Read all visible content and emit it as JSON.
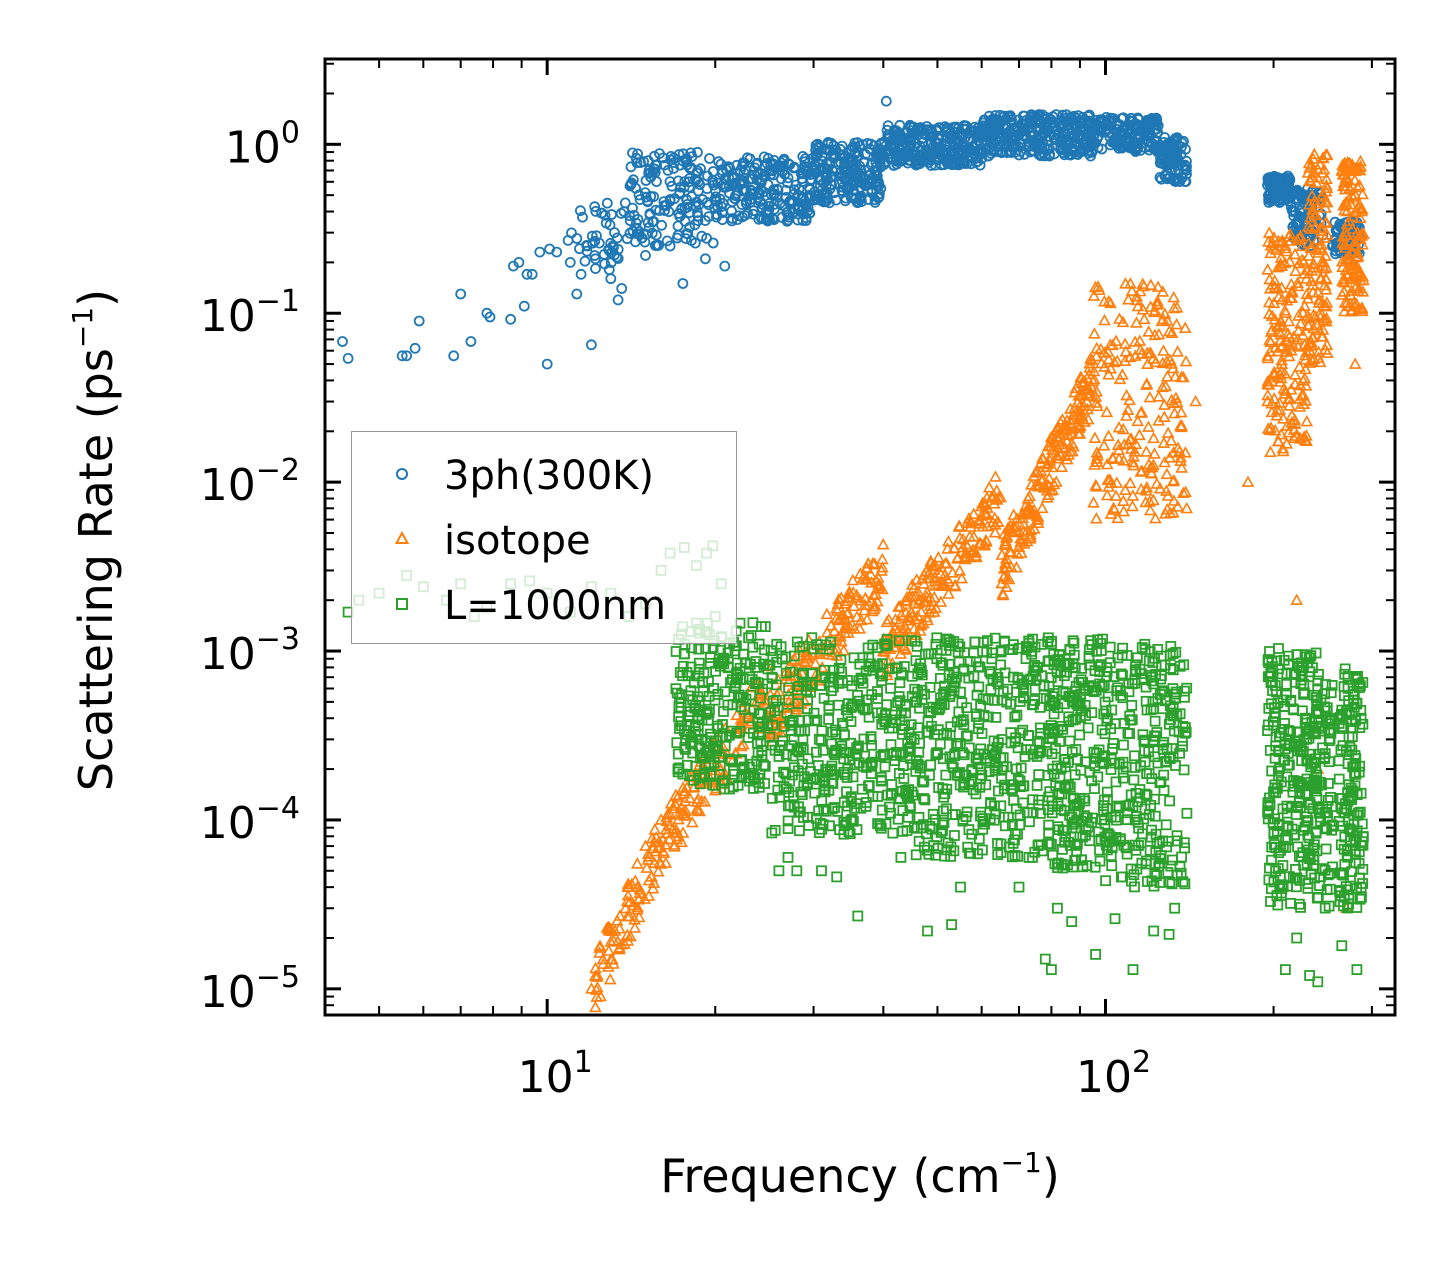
{
  "chart_data": {
    "type": "scatter",
    "title": "",
    "xlabel": "Frequency (cm",
    "xlabel_sup": "−1",
    "xlabel_end": ")",
    "ylabel": "Scattering Rate (ps",
    "ylabel_sup": "−1",
    "ylabel_end": ")",
    "xscale": "log",
    "yscale": "log",
    "xlim": [
      4,
      330
    ],
    "ylim": [
      7e-06,
      3.2
    ],
    "x_ticks": [
      {
        "value": 10,
        "base": "10",
        "exp": "1"
      },
      {
        "value": 100,
        "base": "10",
        "exp": "2"
      }
    ],
    "y_ticks": [
      {
        "value": 1,
        "base": "10",
        "exp": "0"
      },
      {
        "value": 0.1,
        "base": "10",
        "exp": "−1"
      },
      {
        "value": 0.01,
        "base": "10",
        "exp": "−2"
      },
      {
        "value": 0.001,
        "base": "10",
        "exp": "−3"
      },
      {
        "value": 0.0001,
        "base": "10",
        "exp": "−4"
      },
      {
        "value": 1e-05,
        "base": "10",
        "exp": "−5"
      }
    ],
    "legend_position": "center-left",
    "series": [
      {
        "name": "3ph(300K)",
        "marker": "circle",
        "color": "#1f77b4",
        "points": [
          [
            4.3,
            0.068
          ],
          [
            4.4,
            0.054
          ],
          [
            5.5,
            0.056
          ],
          [
            5.6,
            0.056
          ],
          [
            5.8,
            0.062
          ],
          [
            5.9,
            0.09
          ],
          [
            6.8,
            0.056
          ],
          [
            7.0,
            0.13
          ],
          [
            7.3,
            0.068
          ],
          [
            7.8,
            0.1
          ],
          [
            7.9,
            0.095
          ],
          [
            8.6,
            0.092
          ],
          [
            8.7,
            0.19
          ],
          [
            8.9,
            0.2
          ],
          [
            9.1,
            0.11
          ],
          [
            9.2,
            0.17
          ],
          [
            9.4,
            0.17
          ],
          [
            9.7,
            0.23
          ],
          [
            10.0,
            0.05
          ],
          [
            10.1,
            0.24
          ],
          [
            10.4,
            0.23
          ],
          [
            10.9,
            0.27
          ],
          [
            11.0,
            0.2
          ],
          [
            11.3,
            0.13
          ],
          [
            11.5,
            0.17
          ],
          [
            11.8,
            0.25
          ],
          [
            12.0,
            0.065
          ],
          [
            12.2,
            0.21
          ],
          [
            12.4,
            0.26
          ],
          [
            12.7,
            0.38
          ],
          [
            13.0,
            0.16
          ],
          [
            13.2,
            0.3
          ],
          [
            13.4,
            0.12
          ],
          [
            13.6,
            0.14
          ],
          [
            13.8,
            0.45
          ],
          [
            14.4,
            0.55
          ],
          [
            15.0,
            0.22
          ],
          [
            16.6,
            0.25
          ],
          [
            17.5,
            0.15
          ],
          [
            19.2,
            0.21
          ],
          [
            20.8,
            0.19
          ],
          [
            40.5,
            1.8
          ],
          [
            100,
            1.3
          ],
          [
            200,
            0.55
          ],
          [
            230,
            0.45
          ],
          [
            270,
            0.3
          ]
        ],
        "bands": [
          {
            "x": [
              11,
              14
            ],
            "y": [
              0.18,
              0.45
            ],
            "n": 40
          },
          {
            "x": [
              14,
              20
            ],
            "y": [
              0.25,
              0.9
            ],
            "n": 160
          },
          {
            "x": [
              20,
              30
            ],
            "y": [
              0.35,
              0.85
            ],
            "n": 220
          },
          {
            "x": [
              30,
              40
            ],
            "y": [
              0.45,
              1.05
            ],
            "n": 220
          },
          {
            "x": [
              40,
              60
            ],
            "y": [
              0.75,
              1.3
            ],
            "n": 280
          },
          {
            "x": [
              60,
              95
            ],
            "y": [
              0.85,
              1.5
            ],
            "n": 320
          },
          {
            "x": [
              95,
              125
            ],
            "y": [
              0.9,
              1.45
            ],
            "n": 160
          },
          {
            "x": [
              125,
              140
            ],
            "y": [
              0.6,
              1.1
            ],
            "n": 90
          },
          {
            "x": [
              195,
              215
            ],
            "y": [
              0.45,
              0.65
            ],
            "n": 80
          },
          {
            "x": [
              215,
              245
            ],
            "y": [
              0.25,
              0.55
            ],
            "n": 90
          },
          {
            "x": [
              255,
              285
            ],
            "y": [
              0.22,
              0.35
            ],
            "n": 70
          }
        ]
      },
      {
        "name": "isotope",
        "marker": "triangle",
        "color": "#ff7f0e",
        "points": [
          [
            12.0,
            1e-05
          ],
          [
            12.3,
            1.2e-05
          ],
          [
            12.6,
            1.4e-05
          ],
          [
            13.0,
            1.9e-05
          ],
          [
            13.5,
            2.7e-05
          ],
          [
            14.0,
            4e-05
          ],
          [
            14.5,
            5.5e-05
          ],
          [
            15.0,
            7e-05
          ],
          [
            16.0,
            0.0001
          ],
          [
            17.0,
            0.00014
          ],
          [
            18.0,
            0.00018
          ],
          [
            19.0,
            0.00023
          ],
          [
            20.0,
            0.00027
          ],
          [
            22.0,
            0.00035
          ],
          [
            24.0,
            0.0005
          ],
          [
            145,
            0.03
          ],
          [
            180,
            0.01
          ],
          [
            220,
            0.002
          ],
          [
            240,
            0.0002
          ],
          [
            270,
            3e-05
          ],
          [
            280,
            0.05
          ]
        ],
        "bands": [
          {
            "x": [
              12,
              16
            ],
            "y": [
              1e-05,
              7e-05
            ],
            "n": 80,
            "trend": true
          },
          {
            "x": [
              16,
              25
            ],
            "y": [
              7e-05,
              0.0006
            ],
            "n": 120,
            "trend": true
          },
          {
            "x": [
              25,
              40
            ],
            "y": [
              0.0004,
              0.003
            ],
            "n": 160,
            "trend": true
          },
          {
            "x": [
              40,
              65
            ],
            "y": [
              0.001,
              0.008
            ],
            "n": 180,
            "trend": true
          },
          {
            "x": [
              65,
              95
            ],
            "y": [
              0.003,
              0.04
            ],
            "n": 200,
            "trend": true
          },
          {
            "x": [
              95,
              140
            ],
            "y": [
              0.006,
              0.15
            ],
            "n": 220
          },
          {
            "x": [
              195,
              230
            ],
            "y": [
              0.015,
              0.3
            ],
            "n": 180
          },
          {
            "x": [
              230,
              250
            ],
            "y": [
              0.05,
              0.9
            ],
            "n": 120
          },
          {
            "x": [
              265,
              290
            ],
            "y": [
              0.1,
              0.8
            ],
            "n": 140
          }
        ]
      },
      {
        "name": "L=1000nm",
        "marker": "square",
        "color": "#2ca02c",
        "points": [
          [
            4.4,
            0.0017
          ],
          [
            4.6,
            0.002
          ],
          [
            5.0,
            0.0022
          ],
          [
            5.6,
            0.0028
          ],
          [
            6.0,
            0.0024
          ],
          [
            6.6,
            0.002
          ],
          [
            7.0,
            0.0025
          ],
          [
            7.4,
            0.0016
          ],
          [
            7.8,
            0.0018
          ],
          [
            8.6,
            0.0025
          ],
          [
            9.3,
            0.0026
          ],
          [
            10.0,
            0.0022
          ],
          [
            11.0,
            0.0017
          ],
          [
            12.0,
            0.0024
          ],
          [
            13.0,
            0.0022
          ],
          [
            14.0,
            0.0016
          ],
          [
            15.0,
            0.0019
          ],
          [
            16.0,
            0.003
          ],
          [
            16.6,
            0.0038
          ],
          [
            17.6,
            0.0041
          ],
          [
            18.5,
            0.0032
          ],
          [
            19.3,
            0.0038
          ],
          [
            19.8,
            0.0042
          ],
          [
            20.0,
            0.0016
          ],
          [
            20.5,
            0.0025
          ],
          [
            26,
            5e-05
          ],
          [
            27,
            6e-05
          ],
          [
            28,
            5e-05
          ],
          [
            31,
            5e-05
          ],
          [
            33,
            4.6e-05
          ],
          [
            36,
            2.7e-05
          ],
          [
            43,
            6e-05
          ],
          [
            48,
            2.2e-05
          ],
          [
            53,
            2.4e-05
          ],
          [
            55,
            4e-05
          ],
          [
            70,
            4e-05
          ],
          [
            74,
            6e-05
          ],
          [
            78,
            1.5e-05
          ],
          [
            80,
            1.3e-05
          ],
          [
            82,
            3e-05
          ],
          [
            87,
            2.5e-05
          ],
          [
            96,
            1.6e-05
          ],
          [
            104,
            2.6e-05
          ],
          [
            112,
            1.3e-05
          ],
          [
            122,
            2.2e-05
          ],
          [
            130,
            2.1e-05
          ],
          [
            133,
            3e-05
          ],
          [
            210,
            1.3e-05
          ],
          [
            220,
            2e-05
          ],
          [
            232,
            1.2e-05
          ],
          [
            240,
            1.1e-05
          ],
          [
            265,
            1.8e-05
          ],
          [
            282,
            1.3e-05
          ]
        ],
        "bands": [
          {
            "x": [
              17,
              25
            ],
            "y": [
              0.00015,
              0.0015
            ],
            "n": 260
          },
          {
            "x": [
              25,
              45
            ],
            "y": [
              8e-05,
              0.0012
            ],
            "n": 380
          },
          {
            "x": [
              45,
              80
            ],
            "y": [
              6e-05,
              0.0012
            ],
            "n": 420
          },
          {
            "x": [
              80,
              100
            ],
            "y": [
              5e-05,
              0.0012
            ],
            "n": 220
          },
          {
            "x": [
              100,
              140
            ],
            "y": [
              4e-05,
              0.0011
            ],
            "n": 260
          },
          {
            "x": [
              195,
              225
            ],
            "y": [
              3e-05,
              0.0012
            ],
            "n": 180
          },
          {
            "x": [
              225,
              255
            ],
            "y": [
              3e-05,
              0.001
            ],
            "n": 160
          },
          {
            "x": [
              262,
              290
            ],
            "y": [
              3e-05,
              0.0008
            ],
            "n": 140
          }
        ]
      }
    ]
  }
}
